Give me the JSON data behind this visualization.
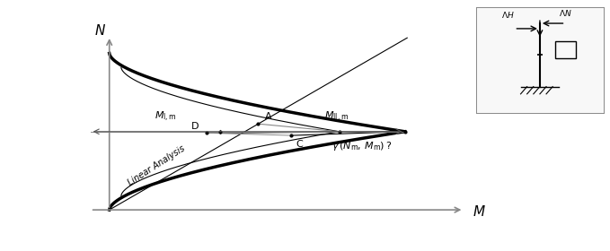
{
  "title": "",
  "bg_color": "#ffffff",
  "axes_color": "#888888",
  "interaction_curve_color": "#000000",
  "interaction_curve_lw": 2.5,
  "thin_curve_color": "#000000",
  "thin_curve_lw": 0.8,
  "arrow_color": "#555555",
  "point_color": "#000000",
  "text_color": "#000000",
  "label_N": "N",
  "label_M": "M",
  "label_MLm": "$M_{\\mathrm{I,m}}$",
  "label_MIIm": "$M_{\\mathrm{II,m}}$",
  "label_A": "A",
  "label_D": "D",
  "label_C": "C",
  "label_gamma": "$\\gamma\\,(N_{\\mathrm{m}},\\,M_{\\mathrm{m}})\\,?$",
  "label_linear": "Linear Analysis",
  "inset_label_H": "$\\Lambda H$",
  "inset_label_N": "$\\Lambda N$"
}
